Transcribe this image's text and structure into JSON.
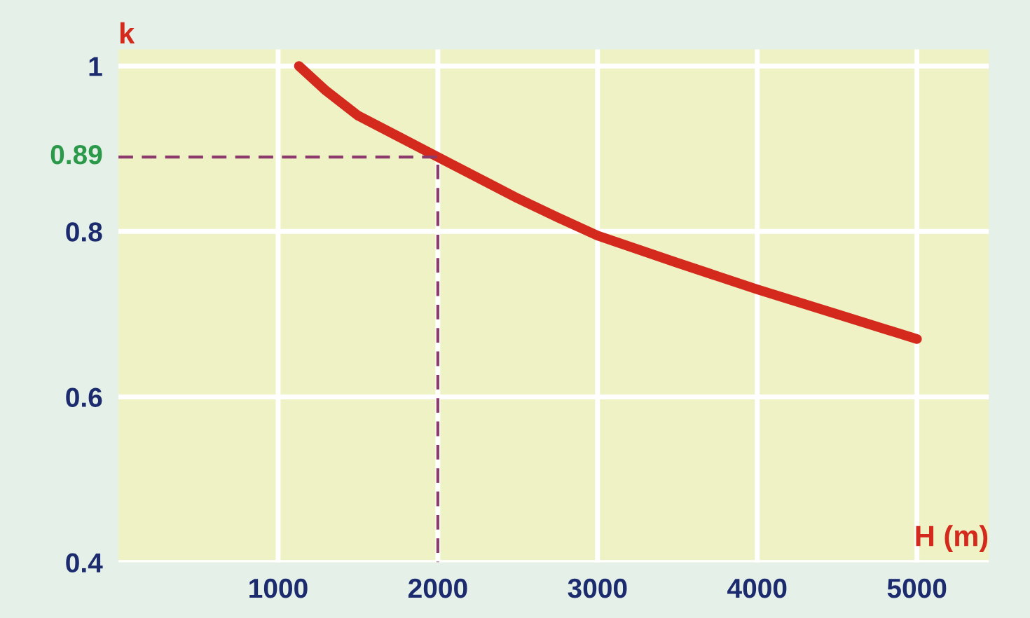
{
  "chart_data": {
    "type": "line",
    "xlabel": "H (m)",
    "ylabel": "k",
    "series": [
      {
        "color": "#d42a1e",
        "x": [
          1130,
          1300,
          1500,
          1750,
          2000,
          2250,
          2500,
          2750,
          3000,
          3500,
          4000,
          4500,
          5000
        ],
        "values": [
          1.0,
          0.97,
          0.94,
          0.915,
          0.89,
          0.865,
          0.84,
          0.817,
          0.795,
          0.762,
          0.73,
          0.7,
          0.67
        ]
      },
      {
        "color": "#8b3a6b",
        "line_style": "dashed",
        "x": [
          0,
          2000,
          2000
        ],
        "values": [
          0.89,
          0.89,
          0.4
        ]
      }
    ],
    "annotations": [
      {
        "text": "0.89",
        "x": 0,
        "y": 0.89
      }
    ],
    "xlim": [
      0,
      5450
    ],
    "ylim": [
      0.4,
      1.02
    ],
    "xticks": [
      1000,
      2000,
      3000,
      4000,
      5000
    ],
    "yticks": [
      0.4,
      0.6,
      0.8,
      1
    ],
    "grid": true
  }
}
